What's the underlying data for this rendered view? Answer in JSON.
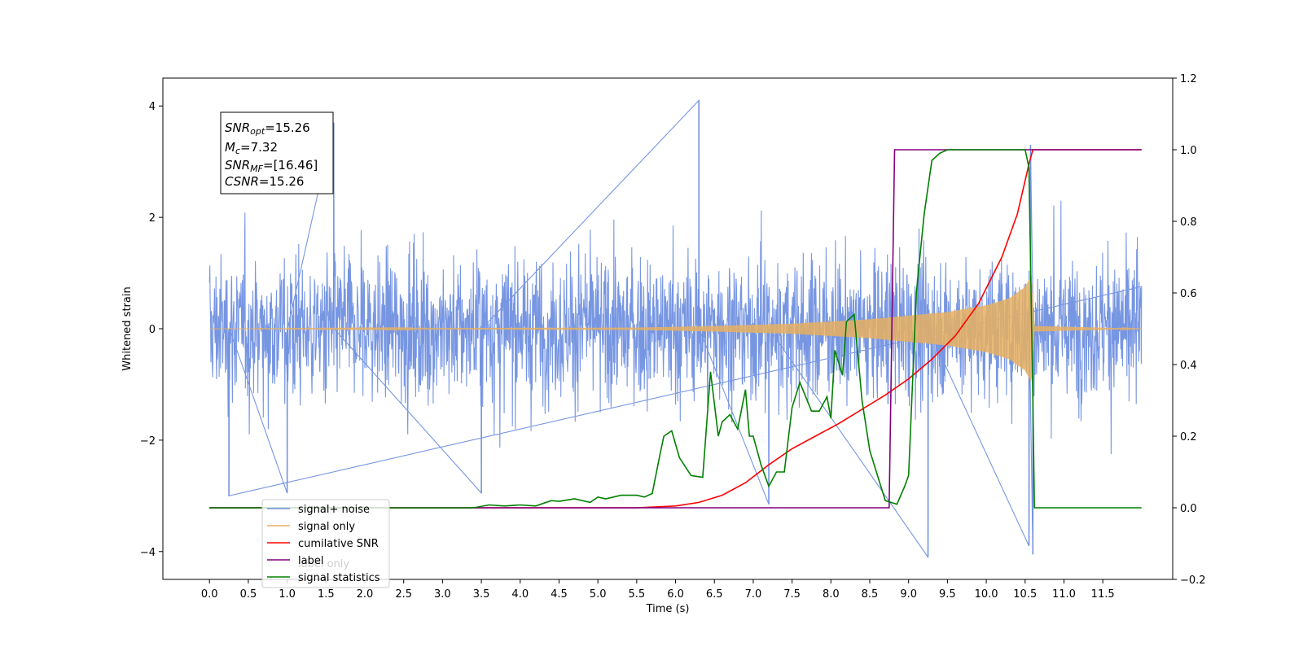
{
  "chart_data": {
    "type": "line",
    "title": "",
    "xlabel": "Time (s)",
    "ylabel": "Whitened strain",
    "xlim": [
      -0.6,
      12.4
    ],
    "ylim": [
      -4.5,
      4.5
    ],
    "y2lim": [
      -0.2,
      1.2
    ],
    "x_ticks": [
      0.0,
      0.5,
      1.0,
      1.5,
      2.0,
      2.5,
      3.0,
      3.5,
      4.0,
      4.5,
      5.0,
      5.5,
      6.0,
      6.5,
      7.0,
      7.5,
      8.0,
      8.5,
      9.0,
      9.5,
      10.0,
      10.5,
      11.0,
      11.5
    ],
    "x_tick_labels": [
      "0.0",
      "0.5",
      "1.0",
      "1.5",
      "2.0",
      "2.5",
      "3.0",
      "3.5",
      "4.0",
      "4.5",
      "5.0",
      "5.5",
      "6.0",
      "6.5",
      "7.0",
      "7.5",
      "8.0",
      "8.5",
      "9.0",
      "9.5",
      "10.0",
      "10.5",
      "11.0",
      "11.5"
    ],
    "y_ticks": [
      -4,
      -2,
      0,
      2,
      4
    ],
    "y_tick_labels": [
      "−4",
      "−2",
      "0",
      "2",
      "4"
    ],
    "y2_ticks": [
      -0.2,
      0.0,
      0.2,
      0.4,
      0.6,
      0.8,
      1.0,
      1.2
    ],
    "y2_tick_labels": [
      "−0.2",
      "0.0",
      "0.2",
      "0.4",
      "0.6",
      "0.8",
      "1.0",
      "1.2"
    ],
    "grid": false,
    "legend_position": "lower-left",
    "annotation": {
      "lines": [
        {
          "main": "SNR",
          "sub": "opt",
          "value": "=15.26"
        },
        {
          "main": "M",
          "sub": "c",
          "value": "=7.32"
        },
        {
          "main": "SNR",
          "sub": "MF",
          "value": "=[16.46]"
        },
        {
          "main": "CSNR",
          "sub": "",
          "value": "=15.26"
        }
      ]
    },
    "series": [
      {
        "name": "signal+ noise",
        "axis": "left",
        "color": "#7090e0",
        "style": "noisy-band",
        "x_start": 0.0,
        "x_end": 12.0,
        "typical_amplitude": 1.6,
        "spikes": [
          [
            0.25,
            -3.0
          ],
          [
            1.0,
            -2.95
          ],
          [
            1.6,
            3.7
          ],
          [
            3.5,
            -2.95
          ],
          [
            6.3,
            4.1
          ],
          [
            7.2,
            -3.15
          ],
          [
            9.25,
            -4.1
          ],
          [
            10.55,
            -3.9
          ],
          [
            10.6,
            -4.05
          ],
          [
            10.57,
            3.3
          ]
        ]
      },
      {
        "name": "signal only",
        "axis": "left",
        "color": "#e8b060",
        "style": "chirp",
        "x_start": 0.0,
        "x_end": 12.0,
        "merger_time": 10.6,
        "envelope": [
          [
            0.0,
            0.0
          ],
          [
            5.5,
            0.02
          ],
          [
            6.5,
            0.05
          ],
          [
            7.5,
            0.09
          ],
          [
            8.5,
            0.17
          ],
          [
            9.5,
            0.3
          ],
          [
            10.0,
            0.42
          ],
          [
            10.3,
            0.55
          ],
          [
            10.5,
            0.75
          ],
          [
            10.58,
            0.95
          ],
          [
            10.62,
            0.05
          ],
          [
            12.0,
            0.0
          ]
        ]
      },
      {
        "name": "cumilative SNR",
        "axis": "right",
        "color": "#ff0000",
        "x": [
          0.0,
          5.5,
          6.0,
          6.3,
          6.6,
          6.9,
          7.2,
          7.5,
          7.8,
          8.1,
          8.4,
          8.7,
          9.0,
          9.3,
          9.6,
          9.9,
          10.2,
          10.4,
          10.55,
          10.6,
          12.0
        ],
        "values": [
          0.0,
          0.0,
          0.005,
          0.015,
          0.035,
          0.07,
          0.12,
          0.165,
          0.2,
          0.235,
          0.275,
          0.315,
          0.36,
          0.415,
          0.48,
          0.57,
          0.7,
          0.82,
          0.96,
          1.0,
          1.0
        ]
      },
      {
        "name": "label",
        "axis": "right",
        "color": "#800080",
        "x": [
          0.0,
          8.75,
          8.82,
          10.6,
          10.6,
          12.0
        ],
        "values": [
          0.0,
          0.0,
          1.0,
          1.0,
          1.0,
          1.0
        ]
      },
      {
        "name": "label only",
        "axis": "right",
        "color": "#cccccc",
        "x": [],
        "values": []
      },
      {
        "name": "signal statistics",
        "axis": "right",
        "color": "#008000",
        "x": [
          0.0,
          3.4,
          3.6,
          3.8,
          4.0,
          4.2,
          4.4,
          4.5,
          4.7,
          4.9,
          5.0,
          5.1,
          5.3,
          5.5,
          5.6,
          5.7,
          5.8,
          5.85,
          5.95,
          6.05,
          6.2,
          6.35,
          6.45,
          6.55,
          6.6,
          6.7,
          6.8,
          6.9,
          6.95,
          7.0,
          7.1,
          7.2,
          7.3,
          7.4,
          7.5,
          7.6,
          7.75,
          7.85,
          7.95,
          8.0,
          8.05,
          8.15,
          8.2,
          8.3,
          8.4,
          8.5,
          8.7,
          8.85,
          8.95,
          9.0,
          9.1,
          9.2,
          9.3,
          9.4,
          9.5,
          10.5,
          10.55,
          10.6,
          10.62,
          12.0
        ],
        "values": [
          0.0,
          0.0,
          0.008,
          0.005,
          0.008,
          0.005,
          0.02,
          0.018,
          0.025,
          0.015,
          0.03,
          0.025,
          0.035,
          0.035,
          0.03,
          0.04,
          0.15,
          0.2,
          0.215,
          0.14,
          0.09,
          0.085,
          0.38,
          0.2,
          0.24,
          0.26,
          0.22,
          0.33,
          0.2,
          0.2,
          0.12,
          0.06,
          0.1,
          0.1,
          0.28,
          0.35,
          0.27,
          0.27,
          0.31,
          0.25,
          0.44,
          0.37,
          0.52,
          0.54,
          0.3,
          0.16,
          0.02,
          0.01,
          0.06,
          0.09,
          0.6,
          0.82,
          0.97,
          0.99,
          1.0,
          1.0,
          0.95,
          0.3,
          0.0,
          0.0
        ]
      }
    ]
  }
}
